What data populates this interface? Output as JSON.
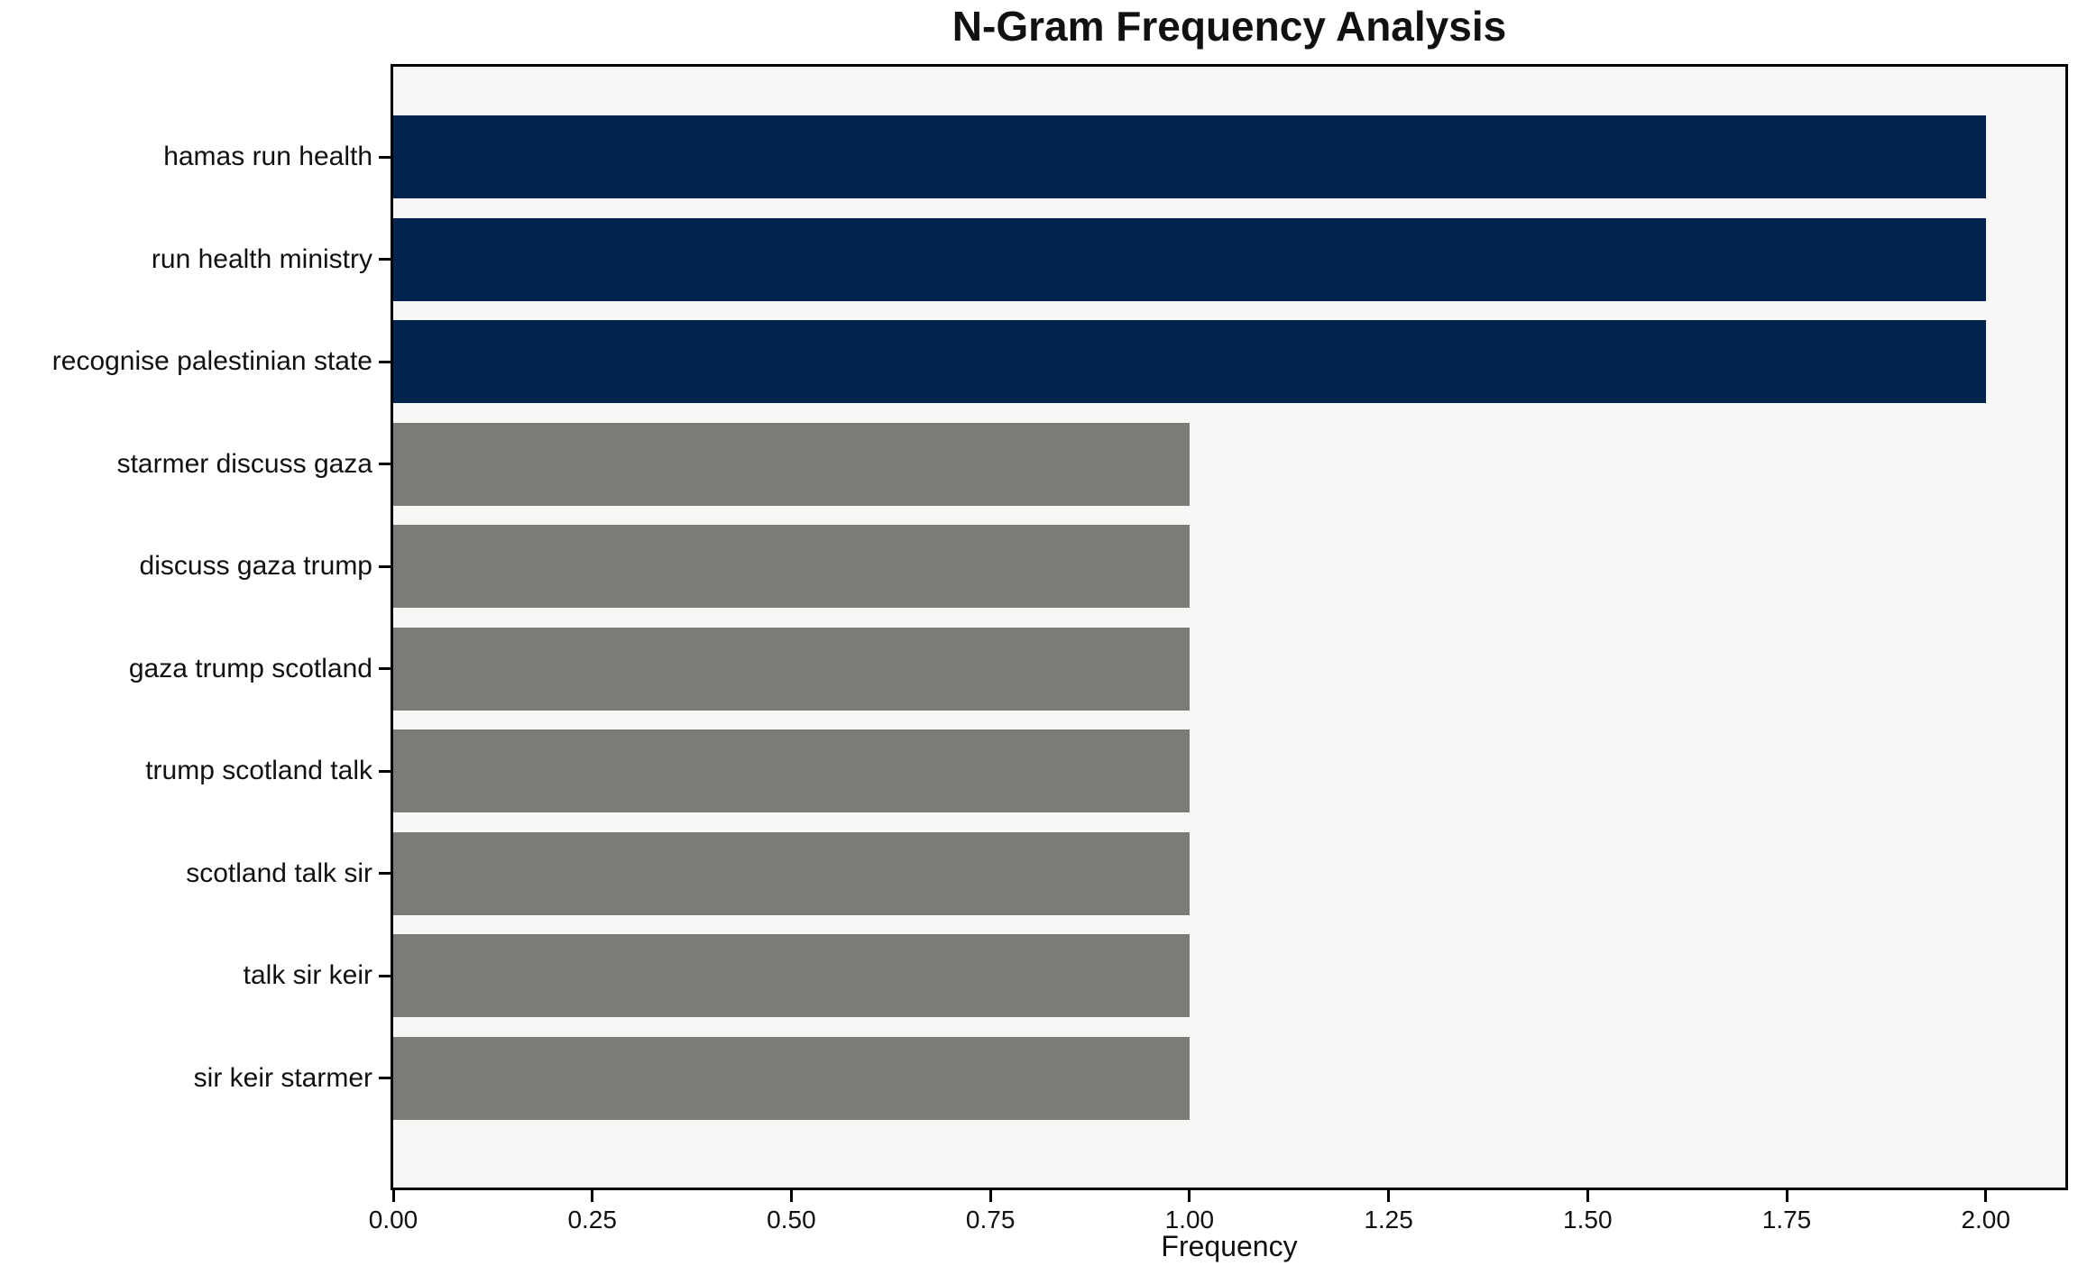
{
  "chart_data": {
    "type": "bar",
    "orientation": "horizontal",
    "title": "N-Gram Frequency Analysis",
    "xlabel": "Frequency",
    "ylabel": "",
    "categories": [
      "hamas run health",
      "run health ministry",
      "recognise palestinian state",
      "starmer discuss gaza",
      "discuss gaza trump",
      "gaza trump scotland",
      "trump scotland talk",
      "scotland talk sir",
      "talk sir keir",
      "sir keir starmer"
    ],
    "values": [
      2,
      2,
      2,
      1,
      1,
      1,
      1,
      1,
      1,
      1
    ],
    "xlim": [
      0,
      2.1
    ],
    "xticks": {
      "values": [
        0,
        0.25,
        0.5,
        0.75,
        1.0,
        1.25,
        1.5,
        1.75,
        2.0
      ],
      "labels": [
        "0.00",
        "0.25",
        "0.50",
        "0.75",
        "1.00",
        "1.25",
        "1.50",
        "1.75",
        "2.00"
      ]
    },
    "grid": false,
    "legend": null,
    "colors": {
      "highlight_bar": "#02234d",
      "default_bar": "#7b7b78",
      "plot_background": "#f7f7f6",
      "figure_background": "#ffffff",
      "axis": "#000000",
      "text": "#111111"
    },
    "highlight_count": 3
  }
}
